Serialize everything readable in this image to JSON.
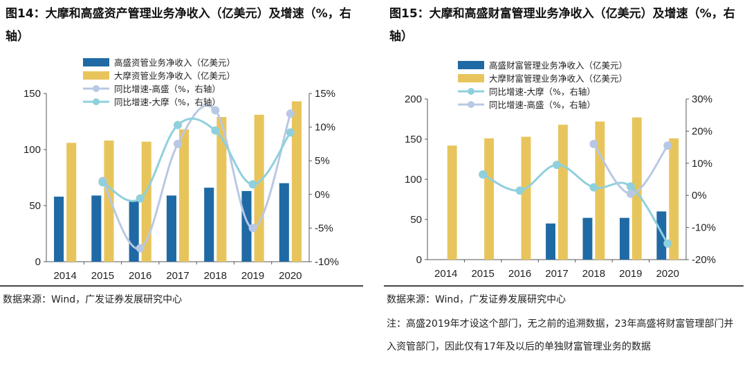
{
  "left": {
    "title": "图14：大摩和高盛资产管理业务净收入（亿美元）及增速（%，右轴）",
    "source": "数据来源：Wind，广发证券发展研究中心",
    "chart_data": {
      "type": "bar",
      "categories": [
        "2014",
        "2015",
        "2016",
        "2017",
        "2018",
        "2019",
        "2020"
      ],
      "ylim": [
        0,
        150
      ],
      "yticks": [
        0,
        50,
        100,
        150
      ],
      "y2lim": [
        -10,
        15
      ],
      "y2ticks": [
        -10,
        0,
        5,
        10,
        15
      ],
      "y2ticks_all": [
        -10,
        -5,
        0,
        5,
        10,
        15
      ],
      "y2tick_labels": [
        "-10%",
        "-5%",
        "0%",
        "5%",
        "10%",
        "15%"
      ],
      "bar_series": [
        {
          "name": "高盛资管业务净收入（亿美元）",
          "color": "#1f6aa5",
          "values": [
            58,
            59,
            54,
            59,
            66,
            63,
            70
          ]
        },
        {
          "name": "大摩资管业务净收入（亿美元）",
          "color": "#e8c55c",
          "values": [
            106,
            108,
            107,
            118,
            129,
            131,
            143
          ]
        }
      ],
      "line_series": [
        {
          "name": "同比增速-高盛（%，右轴）",
          "color": "#b8c8e4",
          "values": [
            null,
            2.0,
            -8.0,
            7.5,
            12.5,
            -5.0,
            12.0
          ]
        },
        {
          "name": "同比增速-大摩（%，右轴）",
          "color": "#8fd0dc",
          "values": [
            null,
            1.8,
            -0.6,
            10.3,
            9.5,
            1.5,
            9.2
          ]
        }
      ]
    }
  },
  "right": {
    "title": "图15：大摩和高盛财富管理业务净收入（亿美元）及增速（%，右轴）",
    "source": "数据来源：Wind，广发证券发展研究中心",
    "note": "注：高盛2019年才设这个部门，无之前的追溯数据，23年高盛将财富管理部门并入资管部门，因此仅有17年及以后的单独财富管理业务的数据",
    "chart_data": {
      "type": "bar",
      "categories": [
        "2014",
        "2015",
        "2016",
        "2017",
        "2018",
        "2019",
        "2020"
      ],
      "ylim": [
        0,
        200
      ],
      "yticks": [
        0,
        50,
        100,
        150,
        200
      ],
      "y2lim": [
        -20,
        30
      ],
      "y2ticks_all": [
        -20,
        -10,
        0,
        10,
        20,
        30
      ],
      "y2tick_labels": [
        "-20%",
        "-10%",
        "0%",
        "10%",
        "20%",
        "30%"
      ],
      "bar_series": [
        {
          "name": "高盛财富管理业务净收入（亿美元）",
          "color": "#1f6aa5",
          "values": [
            null,
            null,
            null,
            45,
            52,
            52,
            60
          ]
        },
        {
          "name": "大摩财富管理业务净收入（亿美元）",
          "color": "#e8c55c",
          "values": [
            142,
            151,
            153,
            168,
            172,
            177,
            151
          ]
        }
      ],
      "line_series": [
        {
          "name": "同比增速-大摩（%，右轴）",
          "color": "#8fd0dc",
          "values": [
            null,
            6.5,
            1.5,
            9.5,
            2.5,
            2.8,
            -15.0
          ]
        },
        {
          "name": "同比增速-高盛（%，右轴）",
          "color": "#b8c8e4",
          "values": [
            null,
            null,
            null,
            null,
            16.0,
            0.5,
            15.5
          ]
        }
      ]
    }
  }
}
